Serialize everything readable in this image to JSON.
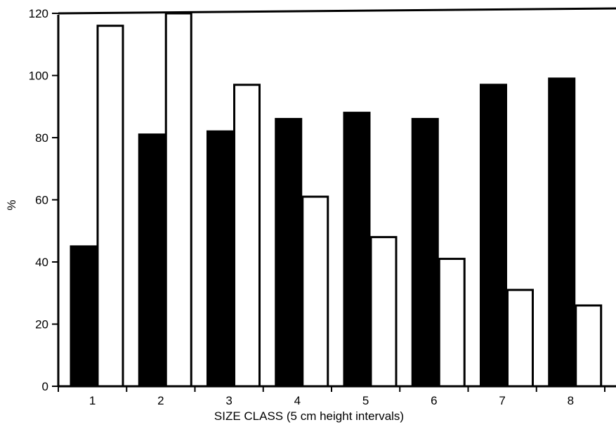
{
  "chart_data": {
    "type": "bar",
    "title": "",
    "xlabel": "SIZE CLASS (5 cm height intervals)",
    "ylabel": "%",
    "ylim": [
      0,
      120
    ],
    "yticks": [
      0,
      20,
      40,
      60,
      80,
      100,
      120
    ],
    "categories": [
      "1",
      "2",
      "3",
      "4",
      "5",
      "6",
      "7",
      "8"
    ],
    "grid": false,
    "legend": "none",
    "series": [
      {
        "color": "#000000",
        "values": [
          45,
          81,
          82,
          86,
          88,
          86,
          97,
          99
        ]
      },
      {
        "color": "#ffffff",
        "values": [
          116,
          120,
          97,
          61,
          48,
          41,
          31,
          26
        ]
      }
    ]
  }
}
